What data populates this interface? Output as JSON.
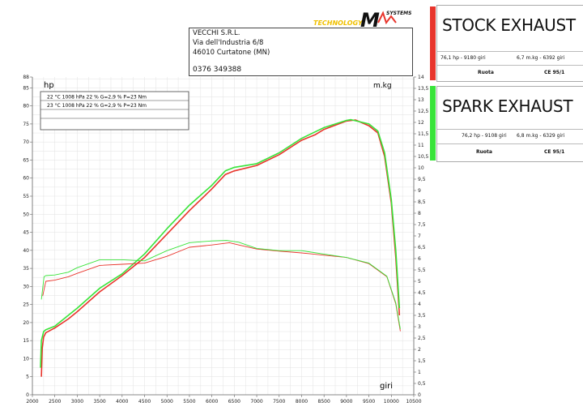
{
  "header": {
    "logo": {
      "left_text": "TECHNOLOGY",
      "mark": "M",
      "right_text": "SYSTEMS"
    },
    "address_lines": [
      "VECCHI S.R.L.",
      "Via dell'Industria 6/8",
      "46010 Curtatone (MN)",
      "0376 349388"
    ]
  },
  "legend_cards": [
    {
      "title": "STOCK EXHAUST",
      "color": "#e8352c",
      "power": "76,1 hp - 9180 giri",
      "torque": "6,7 m.kg - 6392 giri",
      "mode": "Ruota",
      "standard": "CE 95/1"
    },
    {
      "title": "SPARK EXHAUST",
      "color": "#39e43a",
      "power": "76,2 hp - 9108 giri",
      "torque": "6,8 m.kg - 6329 giri",
      "mode": "Ruota",
      "standard": "CE 95/1"
    }
  ],
  "conditions": [
    "22 °C    1008 hPa    22 %    G=2,9 %    P=23 Nm",
    "23 °C    1008 hPa    22 %    G=2,9 %    P=23 Nm"
  ],
  "chart_data": {
    "type": "line",
    "xlabel": "giri",
    "ylabel_left": "hp",
    "ylabel_right": "m.kg",
    "xlim": [
      2000,
      10500
    ],
    "ylim_left": [
      0,
      88
    ],
    "ylim_right": [
      0,
      14
    ],
    "x_ticks": [
      2000,
      2500,
      3000,
      3500,
      4000,
      4500,
      5000,
      5500,
      6000,
      6500,
      7000,
      7500,
      8000,
      8500,
      9000,
      9500,
      10000,
      10500
    ],
    "y_left_ticks": [
      0,
      5,
      10,
      15,
      20,
      25,
      30,
      35,
      40,
      45,
      50,
      55,
      60,
      65,
      70,
      75,
      80,
      85,
      88
    ],
    "y_right_ticks": [
      "0",
      "0,5",
      "1",
      "1,5",
      "2",
      "2,5",
      "3",
      "3,5",
      "4",
      "4,5",
      "5",
      "5,5",
      "6",
      "6,5",
      "7",
      "7,5",
      "8",
      "8,5",
      "9",
      "9,5",
      "10",
      "10,5",
      "11",
      "11,5",
      "12",
      "12,5",
      "13",
      "13,5",
      "14"
    ],
    "grid": true,
    "series": [
      {
        "name": "STOCK EXHAUST",
        "quantity": "power",
        "color": "#e8352c",
        "points": [
          [
            2200,
            5
          ],
          [
            2220,
            13
          ],
          [
            2250,
            16
          ],
          [
            2300,
            17.2
          ],
          [
            2500,
            18.5
          ],
          [
            2800,
            21
          ],
          [
            3000,
            23
          ],
          [
            3500,
            28.5
          ],
          [
            4000,
            33
          ],
          [
            4500,
            38
          ],
          [
            5000,
            44.5
          ],
          [
            5500,
            51
          ],
          [
            6000,
            57
          ],
          [
            6300,
            61
          ],
          [
            6500,
            62
          ],
          [
            7000,
            63.5
          ],
          [
            7500,
            66.5
          ],
          [
            8000,
            70.5
          ],
          [
            8300,
            72
          ],
          [
            8500,
            73.5
          ],
          [
            9000,
            75.8
          ],
          [
            9200,
            76.1
          ],
          [
            9500,
            74.5
          ],
          [
            9700,
            72.5
          ],
          [
            9850,
            66
          ],
          [
            10000,
            53
          ],
          [
            10100,
            38
          ],
          [
            10180,
            22
          ]
        ]
      },
      {
        "name": "SPARK EXHAUST",
        "quantity": "power",
        "color": "#39e43a",
        "points": [
          [
            2180,
            7.5
          ],
          [
            2200,
            15
          ],
          [
            2250,
            17.5
          ],
          [
            2300,
            18
          ],
          [
            2500,
            19
          ],
          [
            2800,
            22
          ],
          [
            3000,
            24
          ],
          [
            3500,
            29.5
          ],
          [
            4000,
            33.5
          ],
          [
            4500,
            39
          ],
          [
            5000,
            46
          ],
          [
            5500,
            52.5
          ],
          [
            6000,
            58
          ],
          [
            6300,
            62
          ],
          [
            6500,
            63
          ],
          [
            7000,
            64
          ],
          [
            7500,
            67
          ],
          [
            8000,
            71
          ],
          [
            8300,
            72.8
          ],
          [
            8500,
            74
          ],
          [
            9000,
            76
          ],
          [
            9100,
            76.2
          ],
          [
            9500,
            75
          ],
          [
            9700,
            73
          ],
          [
            9850,
            67
          ],
          [
            10000,
            54
          ],
          [
            10100,
            40
          ],
          [
            10180,
            24
          ]
        ]
      },
      {
        "name": "STOCK EXHAUST",
        "quantity": "torque",
        "color": "#e8352c",
        "points": [
          [
            2230,
            4.35
          ],
          [
            2300,
            5.0
          ],
          [
            2500,
            5.05
          ],
          [
            2800,
            5.2
          ],
          [
            3000,
            5.35
          ],
          [
            3500,
            5.7
          ],
          [
            4000,
            5.75
          ],
          [
            4500,
            5.8
          ],
          [
            5000,
            6.1
          ],
          [
            5500,
            6.5
          ],
          [
            6000,
            6.6
          ],
          [
            6392,
            6.7
          ],
          [
            6600,
            6.6
          ],
          [
            7000,
            6.42
          ],
          [
            7500,
            6.33
          ],
          [
            8000,
            6.25
          ],
          [
            8500,
            6.15
          ],
          [
            9000,
            6.05
          ],
          [
            9500,
            5.78
          ],
          [
            9900,
            5.2
          ],
          [
            10100,
            4.0
          ],
          [
            10200,
            2.8
          ]
        ]
      },
      {
        "name": "SPARK EXHAUST",
        "quantity": "torque",
        "color": "#39e43a",
        "points": [
          [
            2200,
            4.2
          ],
          [
            2260,
            5.2
          ],
          [
            2300,
            5.25
          ],
          [
            2500,
            5.28
          ],
          [
            2800,
            5.4
          ],
          [
            3000,
            5.6
          ],
          [
            3500,
            5.95
          ],
          [
            4000,
            5.95
          ],
          [
            4500,
            5.9
          ],
          [
            5000,
            6.35
          ],
          [
            5500,
            6.7
          ],
          [
            6000,
            6.78
          ],
          [
            6329,
            6.8
          ],
          [
            6600,
            6.72
          ],
          [
            7000,
            6.45
          ],
          [
            7500,
            6.35
          ],
          [
            8000,
            6.35
          ],
          [
            8500,
            6.2
          ],
          [
            9000,
            6.05
          ],
          [
            9500,
            5.8
          ],
          [
            9900,
            5.22
          ],
          [
            10100,
            4.05
          ],
          [
            10200,
            2.9
          ]
        ]
      }
    ]
  }
}
